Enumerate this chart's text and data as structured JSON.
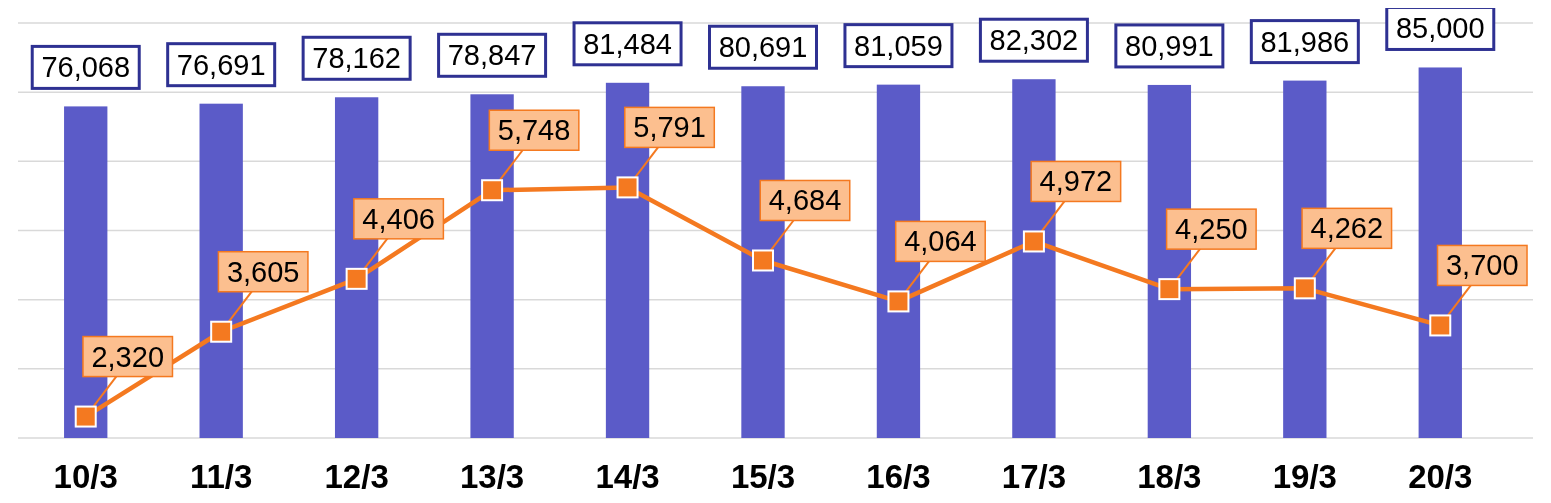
{
  "chart_data": {
    "type": "bar",
    "categories": [
      "10/3",
      "11/3",
      "12/3",
      "13/3",
      "14/3",
      "15/3",
      "16/3",
      "17/3",
      "18/3",
      "19/3",
      "20/3"
    ],
    "series": [
      {
        "color": "#5b5bc8",
        "values": [
          76068,
          76691,
          78162,
          78847,
          81484,
          80691,
          81059,
          82302,
          80991,
          81986,
          85000
        ],
        "value_labels": [
          "76,068",
          "76,691",
          "78,162",
          "78,847",
          "81,484",
          "80,691",
          "81,059",
          "82,302",
          "80,991",
          "81,986",
          "85,000"
        ]
      },
      {
        "type": "line",
        "axis": "y2",
        "color": "#f47920",
        "values": [
          2320,
          3605,
          4406,
          5748,
          5791,
          4684,
          4064,
          4972,
          4250,
          4262,
          3700
        ],
        "value_labels": [
          "2,320",
          "3,605",
          "4,406",
          "5,748",
          "5,791",
          "4,684",
          "4,064",
          "4,972",
          "4,250",
          "4,262",
          "3,700"
        ]
      }
    ],
    "grid": "y",
    "marker": "square",
    "line_style": "solid",
    "tick_labels": "x"
  }
}
